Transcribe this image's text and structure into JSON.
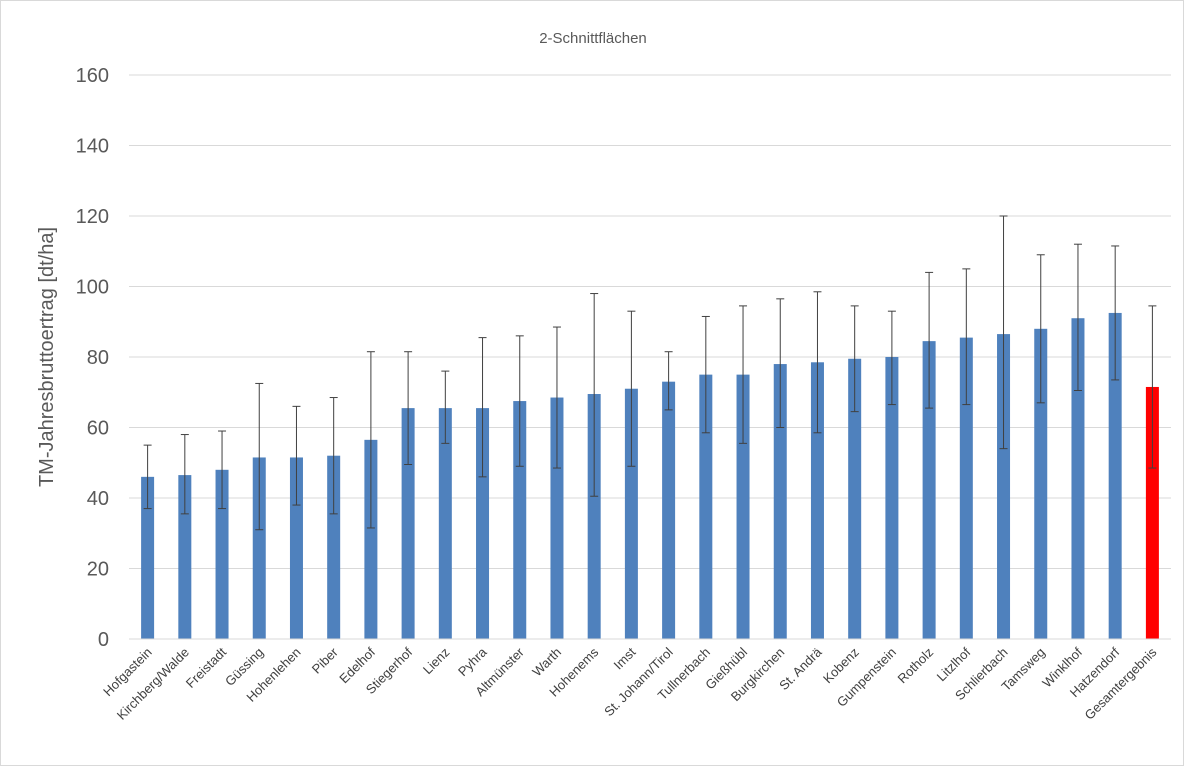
{
  "chart_data": {
    "type": "bar",
    "title": "2-Schnittflächen",
    "xlabel": "",
    "ylabel": "TM-Jahresbruttoertrag [dt/ha]",
    "ylim": [
      0,
      160
    ],
    "yticks": [
      0,
      20,
      40,
      60,
      80,
      100,
      120,
      140,
      160
    ],
    "grid": true,
    "legend": "none",
    "colors": {
      "bar": "#4f81bd",
      "highlight": "#ff0000",
      "grid": "#d9d9d9",
      "error": "#404040"
    },
    "categories": [
      "Hofgastein",
      "Kirchberg/Walde",
      "Freistadt",
      "Güssing",
      "Hohenlehen",
      "Piber",
      "Edelhof",
      "Stiegerhof",
      "Lienz",
      "Pyhra",
      "Altmünster",
      "Warth",
      "Hohenems",
      "Imst",
      "St. Johann/Tirol",
      "Tullnerbach",
      "Gießhübl",
      "Burgkirchen",
      "St. Andrä",
      "Kobenz",
      "Gumpenstein",
      "Rotholz",
      "Litzlhof",
      "Schlierbach",
      "Tamsweg",
      "Winklhof",
      "Hatzendorf",
      "Gesamtergebnis"
    ],
    "series": [
      {
        "values": [
          46,
          46.5,
          48,
          51.5,
          51.5,
          52,
          56.5,
          65.5,
          65.5,
          65.5,
          67.5,
          68.5,
          69.5,
          71,
          73,
          75,
          75,
          78,
          78.5,
          79.5,
          80,
          84.5,
          85.5,
          86.5,
          88,
          91,
          92.5,
          71.5
        ],
        "error_low": [
          37,
          35.5,
          37,
          31,
          38,
          35.5,
          31.5,
          49.5,
          55.5,
          46,
          49,
          48.5,
          40.5,
          49,
          65,
          58.5,
          55.5,
          60,
          58.5,
          64.5,
          66.5,
          65.5,
          66.5,
          54,
          67,
          70.5,
          73.5,
          48.5
        ],
        "error_high": [
          55,
          58,
          59,
          72.5,
          66,
          68.5,
          81.5,
          81.5,
          76,
          85.5,
          86,
          88.5,
          98,
          93,
          81.5,
          91.5,
          94.5,
          96.5,
          98.5,
          94.5,
          93,
          104,
          105,
          120,
          109,
          112,
          111.5,
          94.5
        ]
      }
    ],
    "highlight_category": "Gesamtergebnis"
  }
}
